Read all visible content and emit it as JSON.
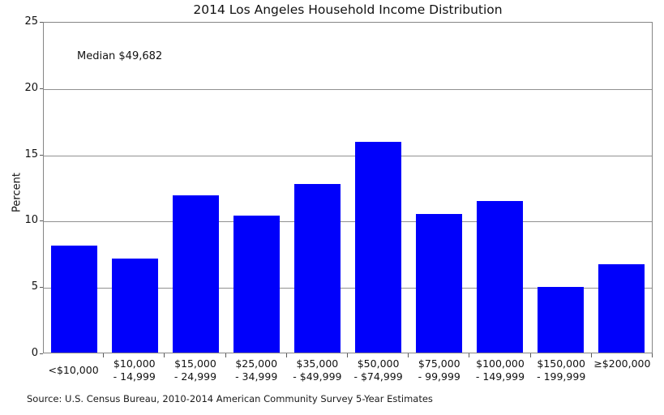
{
  "chart_data": {
    "type": "bar",
    "title": "2014 Los Angeles Household Income Distribution",
    "annotation": "Median $49,682",
    "ylabel": "Percent",
    "xlabel": "",
    "ylim": [
      0,
      25
    ],
    "yticks": [
      0,
      5,
      10,
      15,
      20,
      25
    ],
    "grid": true,
    "legend_position": "none",
    "bar_color": "#0000fb",
    "categories": [
      "<$10,000",
      "$10,000 - 14,999",
      "$15,000 - 24,999",
      "$25,000 - 34,999",
      "$35,000 - $49,999",
      "$50,000 - $74,999",
      "$75,000 - 99,999",
      "$100,000 - 149,999",
      "$150,000 - 199,999",
      "≥$200,000"
    ],
    "category_lines": [
      [
        "<$10,000"
      ],
      [
        "$10,000",
        "- 14,999"
      ],
      [
        "$15,000",
        "- 24,999"
      ],
      [
        "$25,000",
        "- 34,999"
      ],
      [
        "$35,000",
        "- $49,999"
      ],
      [
        "$50,000",
        "- $74,999"
      ],
      [
        "$75,000",
        "- 99,999"
      ],
      [
        "$100,000",
        "- 149,999"
      ],
      [
        "$150,000",
        "- 199,999"
      ],
      [
        "≥$200,000"
      ]
    ],
    "values": [
      8.1,
      7.1,
      11.9,
      10.4,
      12.8,
      16.0,
      10.5,
      11.5,
      5.0,
      6.7
    ],
    "source": "Source: U.S. Census Bureau, 2010-2014 American Community Survey 5-Year Estimates"
  }
}
